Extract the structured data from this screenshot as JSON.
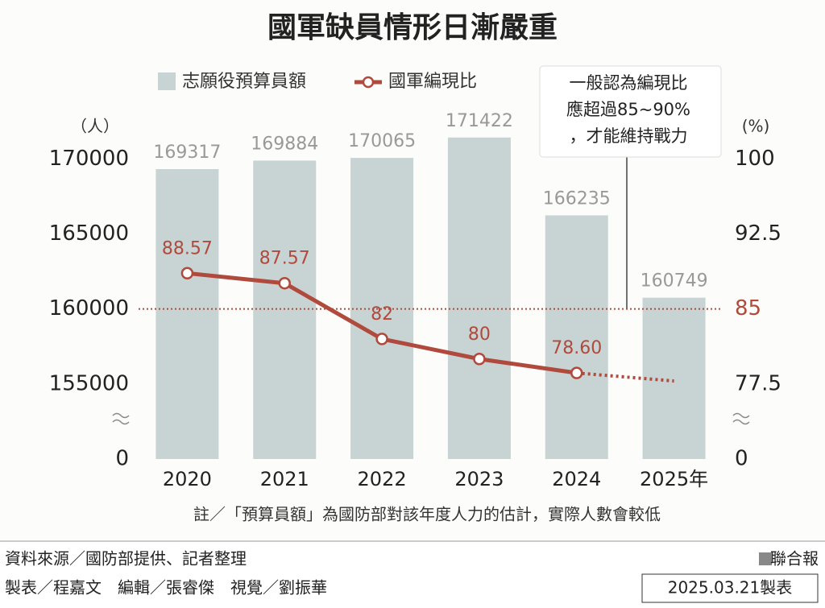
{
  "chart_data": {
    "type": "bar_line",
    "title": "國軍缺員情形日漸嚴重",
    "categories": [
      "2020",
      "2021",
      "2022",
      "2023",
      "2024",
      "2025年"
    ],
    "series": [
      {
        "name": "志願役預算員額",
        "type": "bar",
        "color": "#c8d3d3",
        "values": [
          169317,
          169884,
          170065,
          171422,
          166235,
          160749
        ]
      },
      {
        "name": "國軍編現比",
        "type": "line",
        "axis": "y2",
        "color": "#b04a3c",
        "dotted_last": true,
        "values": [
          88.57,
          87.57,
          82,
          80,
          78.6,
          77.8
        ],
        "value_labels": [
          "88.57",
          "87.57",
          "82",
          "80",
          "78.60",
          null
        ]
      }
    ],
    "ylabel": "（人）",
    "y2label": "(%)",
    "ylim": [
      0,
      172000
    ],
    "yticks": [
      0,
      155000,
      160000,
      165000,
      170000
    ],
    "y2lim": [
      0,
      103
    ],
    "y2ticks": [
      0,
      77.5,
      85,
      92.5,
      100
    ],
    "y_break": true,
    "reference_line": 85,
    "annotation": [
      "一般認為編現比",
      "應超過85~90%",
      "，才能維持戰力"
    ],
    "note": "註／「預算員額」為國防部對該年度人力的估計，實際人數會較低",
    "source": "資料來源／國防部提供、記者整理",
    "credits": "製表／程嘉文　編輯／張睿傑　視覺／劉振華",
    "publisher": "聯合報",
    "date": "2025.03.21製表"
  }
}
